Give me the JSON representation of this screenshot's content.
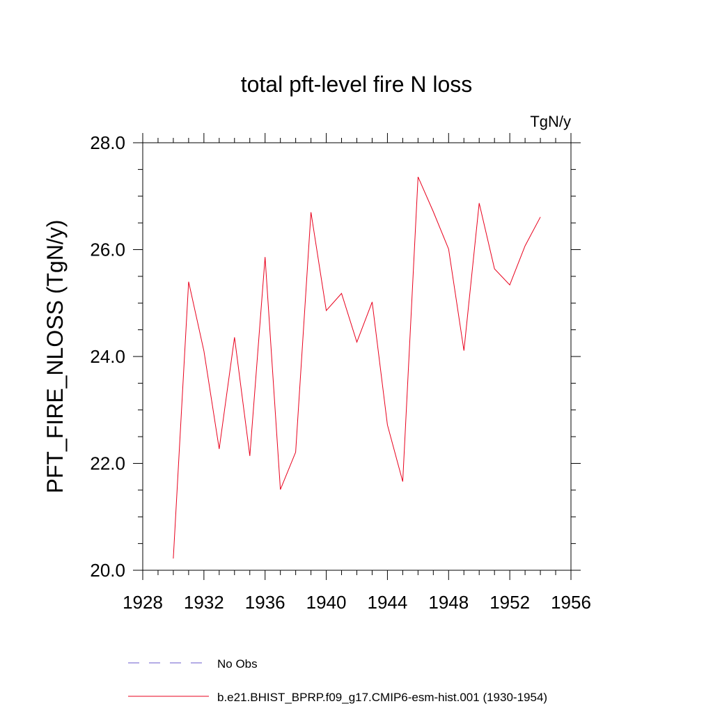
{
  "chart_data": {
    "type": "line",
    "title": "total pft-level fire N loss",
    "units_label": "TgN/y",
    "xlabel": "",
    "ylabel": "PFT_FIRE_NLOSS  (TgN/y)",
    "xlim": [
      1928,
      1956
    ],
    "ylim": [
      20.0,
      28.0
    ],
    "x_major_ticks": [
      1928,
      1932,
      1936,
      1940,
      1944,
      1948,
      1952,
      1956
    ],
    "x_tick_labels": [
      "1928",
      "1932",
      "1936",
      "1940",
      "1944",
      "1948",
      "1952",
      "1956"
    ],
    "y_major_ticks": [
      20,
      22,
      24,
      26,
      28
    ],
    "y_tick_labels": [
      "20.0",
      "22.0",
      "24.0",
      "26.0",
      "28.0"
    ],
    "grid": false,
    "legend_position": "bottom",
    "series": [
      {
        "name": "b.e21.BHIST_BPRP.f09_g17.CMIP6-esm-hist.001 (1930-1954)",
        "color": "#e8001c",
        "style": "solid",
        "x": [
          1930,
          1931,
          1932,
          1933,
          1934,
          1935,
          1936,
          1937,
          1938,
          1939,
          1940,
          1941,
          1942,
          1943,
          1944,
          1945,
          1946,
          1947,
          1948,
          1949,
          1950,
          1951,
          1952,
          1953,
          1954
        ],
        "y": [
          20.22,
          25.4,
          24.1,
          22.27,
          24.36,
          22.14,
          25.86,
          21.51,
          22.21,
          26.7,
          24.86,
          25.18,
          24.27,
          25.02,
          22.72,
          21.66,
          27.36,
          26.71,
          26.01,
          24.11,
          26.87,
          25.64,
          25.34,
          26.07,
          26.61
        ]
      },
      {
        "name": "No Obs",
        "color": "#6a5acd",
        "style": "dashed",
        "x": [],
        "y": []
      }
    ]
  }
}
